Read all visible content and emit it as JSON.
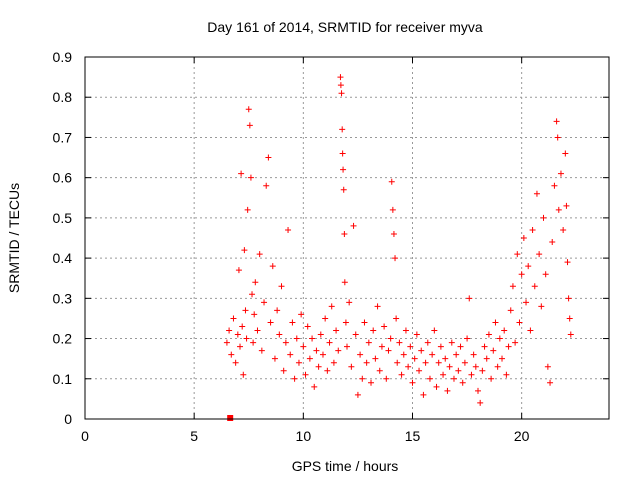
{
  "chart_data": {
    "type": "scatter",
    "title": "Day 161 of 2014, SRMTID for receiver myva",
    "xlabel": "GPS time / hours",
    "ylabel": "SRMTID / TECUs",
    "xlim": [
      0,
      24
    ],
    "ylim": [
      0,
      0.9
    ],
    "xticks": [
      0,
      5,
      10,
      15,
      20
    ],
    "xtick_labels": [
      "0",
      "5",
      "10",
      "15",
      "20"
    ],
    "yticks": [
      0,
      0.1,
      0.2,
      0.3,
      0.4,
      0.5,
      0.6,
      0.7,
      0.8,
      0.9
    ],
    "ytick_labels": [
      "0",
      "0.1",
      "0.2",
      "0.3",
      "0.4",
      "0.5",
      "0.6",
      "0.7",
      "0.8",
      "0.9"
    ],
    "grid": true,
    "marker": "+",
    "color": "#ff0000",
    "series": [
      {
        "name": "SRMTID",
        "points": [
          [
            6.5,
            0.19
          ],
          [
            6.6,
            0.22
          ],
          [
            6.7,
            0.16
          ],
          [
            6.8,
            0.25
          ],
          [
            6.9,
            0.14
          ],
          [
            7.0,
            0.21
          ],
          [
            7.05,
            0.37
          ],
          [
            7.1,
            0.18
          ],
          [
            7.15,
            0.61
          ],
          [
            7.2,
            0.23
          ],
          [
            7.25,
            0.11
          ],
          [
            7.3,
            0.42
          ],
          [
            7.35,
            0.27
          ],
          [
            7.4,
            0.2
          ],
          [
            7.45,
            0.52
          ],
          [
            7.5,
            0.77
          ],
          [
            7.55,
            0.73
          ],
          [
            7.6,
            0.6
          ],
          [
            7.65,
            0.31
          ],
          [
            7.7,
            0.19
          ],
          [
            7.75,
            0.26
          ],
          [
            7.8,
            0.34
          ],
          [
            7.9,
            0.22
          ],
          [
            8.0,
            0.41
          ],
          [
            8.1,
            0.17
          ],
          [
            8.2,
            0.29
          ],
          [
            8.3,
            0.58
          ],
          [
            8.4,
            0.65
          ],
          [
            8.5,
            0.24
          ],
          [
            8.6,
            0.38
          ],
          [
            8.7,
            0.15
          ],
          [
            8.8,
            0.27
          ],
          [
            8.9,
            0.21
          ],
          [
            9.0,
            0.33
          ],
          [
            9.1,
            0.12
          ],
          [
            9.2,
            0.19
          ],
          [
            9.3,
            0.47
          ],
          [
            9.4,
            0.16
          ],
          [
            9.5,
            0.24
          ],
          [
            9.6,
            0.1
          ],
          [
            9.7,
            0.2
          ],
          [
            9.8,
            0.14
          ],
          [
            9.9,
            0.26
          ],
          [
            10.0,
            0.18
          ],
          [
            10.1,
            0.11
          ],
          [
            10.2,
            0.23
          ],
          [
            10.3,
            0.15
          ],
          [
            10.4,
            0.2
          ],
          [
            10.5,
            0.08
          ],
          [
            10.6,
            0.17
          ],
          [
            10.7,
            0.13
          ],
          [
            10.8,
            0.21
          ],
          [
            10.9,
            0.16
          ],
          [
            11.0,
            0.25
          ],
          [
            11.1,
            0.12
          ],
          [
            11.2,
            0.19
          ],
          [
            11.3,
            0.28
          ],
          [
            11.4,
            0.14
          ],
          [
            11.5,
            0.22
          ],
          [
            11.6,
            0.17
          ],
          [
            11.7,
            0.85
          ],
          [
            11.72,
            0.83
          ],
          [
            11.75,
            0.81
          ],
          [
            11.78,
            0.72
          ],
          [
            11.8,
            0.66
          ],
          [
            11.82,
            0.62
          ],
          [
            11.85,
            0.57
          ],
          [
            11.88,
            0.46
          ],
          [
            11.9,
            0.34
          ],
          [
            11.95,
            0.24
          ],
          [
            12.0,
            0.18
          ],
          [
            12.1,
            0.29
          ],
          [
            12.2,
            0.13
          ],
          [
            12.3,
            0.48
          ],
          [
            12.4,
            0.21
          ],
          [
            12.5,
            0.06
          ],
          [
            12.6,
            0.16
          ],
          [
            12.7,
            0.1
          ],
          [
            12.8,
            0.24
          ],
          [
            12.9,
            0.14
          ],
          [
            13.0,
            0.19
          ],
          [
            13.1,
            0.09
          ],
          [
            13.2,
            0.22
          ],
          [
            13.3,
            0.15
          ],
          [
            13.4,
            0.28
          ],
          [
            13.5,
            0.12
          ],
          [
            13.6,
            0.18
          ],
          [
            13.7,
            0.23
          ],
          [
            13.8,
            0.1
          ],
          [
            13.9,
            0.17
          ],
          [
            14.0,
            0.2
          ],
          [
            14.05,
            0.59
          ],
          [
            14.1,
            0.52
          ],
          [
            14.15,
            0.46
          ],
          [
            14.2,
            0.4
          ],
          [
            14.25,
            0.25
          ],
          [
            14.3,
            0.14
          ],
          [
            14.4,
            0.19
          ],
          [
            14.5,
            0.11
          ],
          [
            14.6,
            0.16
          ],
          [
            14.7,
            0.22
          ],
          [
            14.8,
            0.13
          ],
          [
            14.9,
            0.18
          ],
          [
            15.0,
            0.09
          ],
          [
            15.1,
            0.15
          ],
          [
            15.2,
            0.21
          ],
          [
            15.3,
            0.12
          ],
          [
            15.4,
            0.17
          ],
          [
            15.5,
            0.06
          ],
          [
            15.6,
            0.14
          ],
          [
            15.7,
            0.19
          ],
          [
            15.8,
            0.1
          ],
          [
            15.9,
            0.16
          ],
          [
            16.0,
            0.22
          ],
          [
            16.1,
            0.08
          ],
          [
            16.2,
            0.14
          ],
          [
            16.3,
            0.18
          ],
          [
            16.4,
            0.11
          ],
          [
            16.5,
            0.15
          ],
          [
            16.6,
            0.07
          ],
          [
            16.7,
            0.13
          ],
          [
            16.8,
            0.19
          ],
          [
            16.9,
            0.1
          ],
          [
            17.0,
            0.16
          ],
          [
            17.1,
            0.12
          ],
          [
            17.2,
            0.18
          ],
          [
            17.3,
            0.09
          ],
          [
            17.4,
            0.14
          ],
          [
            17.5,
            0.2
          ],
          [
            17.6,
            0.3
          ],
          [
            17.7,
            0.11
          ],
          [
            17.8,
            0.16
          ],
          [
            17.9,
            0.13
          ],
          [
            18.0,
            0.07
          ],
          [
            18.1,
            0.04
          ],
          [
            18.2,
            0.12
          ],
          [
            18.3,
            0.18
          ],
          [
            18.4,
            0.15
          ],
          [
            18.5,
            0.21
          ],
          [
            18.6,
            0.1
          ],
          [
            18.7,
            0.17
          ],
          [
            18.8,
            0.24
          ],
          [
            18.9,
            0.13
          ],
          [
            19.0,
            0.2
          ],
          [
            19.1,
            0.15
          ],
          [
            19.2,
            0.22
          ],
          [
            19.3,
            0.11
          ],
          [
            19.4,
            0.18
          ],
          [
            19.5,
            0.27
          ],
          [
            19.6,
            0.33
          ],
          [
            19.7,
            0.19
          ],
          [
            19.8,
            0.41
          ],
          [
            19.9,
            0.24
          ],
          [
            20.0,
            0.36
          ],
          [
            20.1,
            0.45
          ],
          [
            20.2,
            0.29
          ],
          [
            20.3,
            0.38
          ],
          [
            20.4,
            0.22
          ],
          [
            20.5,
            0.47
          ],
          [
            20.6,
            0.33
          ],
          [
            20.7,
            0.56
          ],
          [
            20.8,
            0.41
          ],
          [
            20.9,
            0.28
          ],
          [
            21.0,
            0.5
          ],
          [
            21.1,
            0.36
          ],
          [
            21.2,
            0.13
          ],
          [
            21.3,
            0.09
          ],
          [
            21.4,
            0.44
          ],
          [
            21.5,
            0.58
          ],
          [
            21.6,
            0.74
          ],
          [
            21.65,
            0.7
          ],
          [
            21.7,
            0.52
          ],
          [
            21.8,
            0.61
          ],
          [
            21.9,
            0.47
          ],
          [
            22.0,
            0.66
          ],
          [
            22.05,
            0.53
          ],
          [
            22.1,
            0.39
          ],
          [
            22.15,
            0.3
          ],
          [
            22.2,
            0.25
          ],
          [
            22.25,
            0.21
          ]
        ]
      }
    ],
    "annotations": [
      {
        "type": "zero-value-marker",
        "x": 6.65,
        "y": 0
      }
    ]
  }
}
